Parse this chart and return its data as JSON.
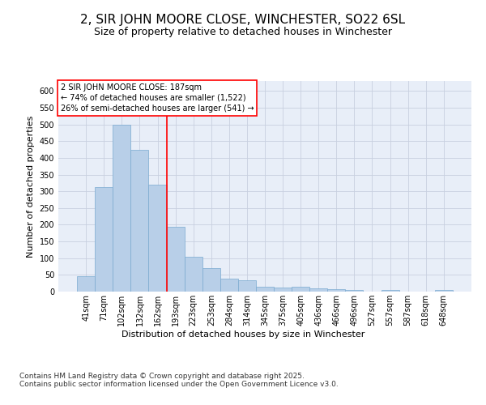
{
  "title_line1": "2, SIR JOHN MOORE CLOSE, WINCHESTER, SO22 6SL",
  "title_line2": "Size of property relative to detached houses in Winchester",
  "xlabel": "Distribution of detached houses by size in Winchester",
  "ylabel": "Number of detached properties",
  "categories": [
    "41sqm",
    "71sqm",
    "102sqm",
    "132sqm",
    "162sqm",
    "193sqm",
    "223sqm",
    "253sqm",
    "284sqm",
    "314sqm",
    "345sqm",
    "375sqm",
    "405sqm",
    "436sqm",
    "466sqm",
    "496sqm",
    "527sqm",
    "557sqm",
    "587sqm",
    "618sqm",
    "648sqm"
  ],
  "values": [
    46,
    313,
    500,
    424,
    320,
    195,
    105,
    70,
    38,
    33,
    14,
    12,
    15,
    10,
    7,
    5,
    0,
    4,
    0,
    0,
    4
  ],
  "bar_color": "#b8cfe8",
  "bar_edge_color": "#7aaad0",
  "background_color": "#e8eef8",
  "grid_color": "#c8d0e0",
  "vline_color": "red",
  "vline_position": 4.5,
  "annotation_text": "2 SIR JOHN MOORE CLOSE: 187sqm\n← 74% of detached houses are smaller (1,522)\n26% of semi-detached houses are larger (541) →",
  "annotation_box_color": "white",
  "annotation_box_edge": "red",
  "footnote": "Contains HM Land Registry data © Crown copyright and database right 2025.\nContains public sector information licensed under the Open Government Licence v3.0.",
  "ylim": [
    0,
    630
  ],
  "title_fontsize": 11,
  "subtitle_fontsize": 9,
  "axis_fontsize": 8,
  "tick_fontsize": 7,
  "annotation_fontsize": 7,
  "footnote_fontsize": 6.5
}
